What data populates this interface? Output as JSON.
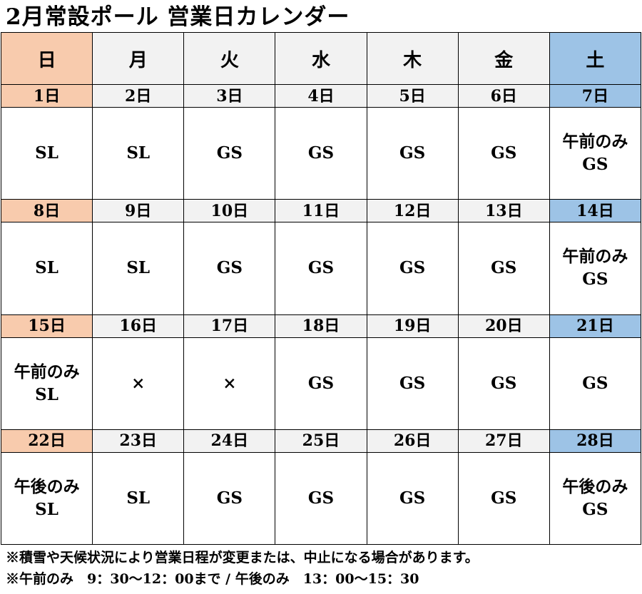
{
  "title": "2月常設ポール 営業日カレンダー",
  "colors": {
    "sunday": "#f8cbad",
    "saturday": "#9dc3e6",
    "weekday": "#f2f2f2",
    "border": "#000000"
  },
  "weekdays": [
    "日",
    "月",
    "火",
    "水",
    "木",
    "金",
    "土"
  ],
  "weeks": [
    {
      "dates": [
        "1日",
        "2日",
        "3日",
        "4日",
        "5日",
        "6日",
        "7日"
      ],
      "cells": [
        [
          "SL"
        ],
        [
          "SL"
        ],
        [
          "GS"
        ],
        [
          "GS"
        ],
        [
          "GS"
        ],
        [
          "GS"
        ],
        [
          "午前のみ",
          "GS"
        ]
      ]
    },
    {
      "dates": [
        "8日",
        "9日",
        "10日",
        "11日",
        "12日",
        "13日",
        "14日"
      ],
      "cells": [
        [
          "SL"
        ],
        [
          "SL"
        ],
        [
          "GS"
        ],
        [
          "GS"
        ],
        [
          "GS"
        ],
        [
          "GS"
        ],
        [
          "午前のみ",
          "GS"
        ]
      ]
    },
    {
      "dates": [
        "15日",
        "16日",
        "17日",
        "18日",
        "19日",
        "20日",
        "21日"
      ],
      "cells": [
        [
          "午前のみ",
          "SL"
        ],
        [
          "×"
        ],
        [
          "×"
        ],
        [
          "GS"
        ],
        [
          "GS"
        ],
        [
          "GS"
        ],
        [
          "GS"
        ]
      ]
    },
    {
      "dates": [
        "22日",
        "23日",
        "24日",
        "25日",
        "26日",
        "27日",
        "28日"
      ],
      "cells": [
        [
          "午後のみ",
          "SL"
        ],
        [
          "SL"
        ],
        [
          "GS"
        ],
        [
          "GS"
        ],
        [
          "GS"
        ],
        [
          "GS"
        ],
        [
          "午後のみ",
          "GS"
        ]
      ]
    }
  ],
  "notes": [
    "※積雪や天候状況により営業日程が変更または、中止になる場合があります。",
    "※午前のみ　9：30～12：00まで / 午後のみ　13：00～15：30"
  ]
}
